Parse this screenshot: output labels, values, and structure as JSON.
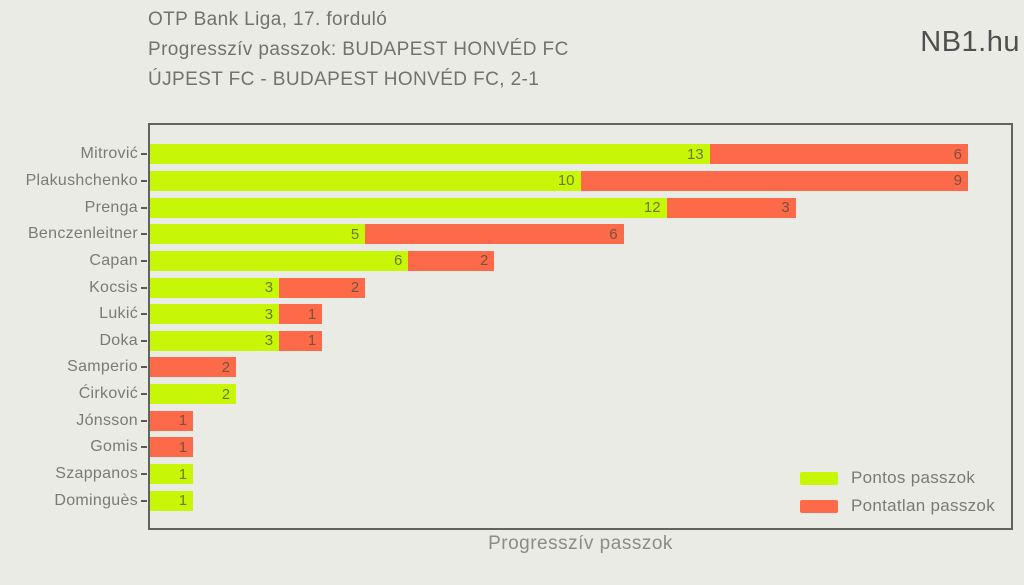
{
  "page": {
    "background": "#ebebe6"
  },
  "header": {
    "title_lines": [
      "OTP Bank Liga, 17. forduló",
      "Progresszív passzok: BUDAPEST HONVÉD FC",
      "ÚJPEST FC - BUDAPEST HONVÉD FC, 2-1"
    ],
    "brand": "NB1.hu"
  },
  "chart_data": {
    "type": "bar",
    "orientation": "horizontal",
    "stacked": true,
    "title": "Progresszív passzok: BUDAPEST HONVÉD FC",
    "xlabel": "Progresszív passzok",
    "ylabel": "",
    "xlim": [
      0,
      20
    ],
    "grid": false,
    "legend_position": "lower right",
    "bar_labels": true,
    "categories": [
      "Mitrović",
      "Plakushchenko",
      "Prenga",
      "Benczenleitner",
      "Capan",
      "Kocsis",
      "Lukić",
      "Doka",
      "Samperio",
      "Ćirković",
      "Jónsson",
      "Gomis",
      "Szappanos",
      "Dominguès"
    ],
    "series": [
      {
        "name": "Pontos passzok",
        "color": "#c7f707",
        "values": [
          13,
          10,
          12,
          5,
          6,
          3,
          3,
          3,
          0,
          2,
          0,
          0,
          1,
          1
        ]
      },
      {
        "name": "Pontatlan passzok",
        "color": "#fc6a4a",
        "values": [
          6,
          9,
          3,
          6,
          2,
          2,
          1,
          1,
          2,
          0,
          1,
          1,
          0,
          0
        ]
      }
    ]
  },
  "legend": {
    "items": [
      {
        "label": "Pontos passzok",
        "color": "#c7f707"
      },
      {
        "label": "Pontatlan passzok",
        "color": "#fc6a4a"
      }
    ]
  }
}
